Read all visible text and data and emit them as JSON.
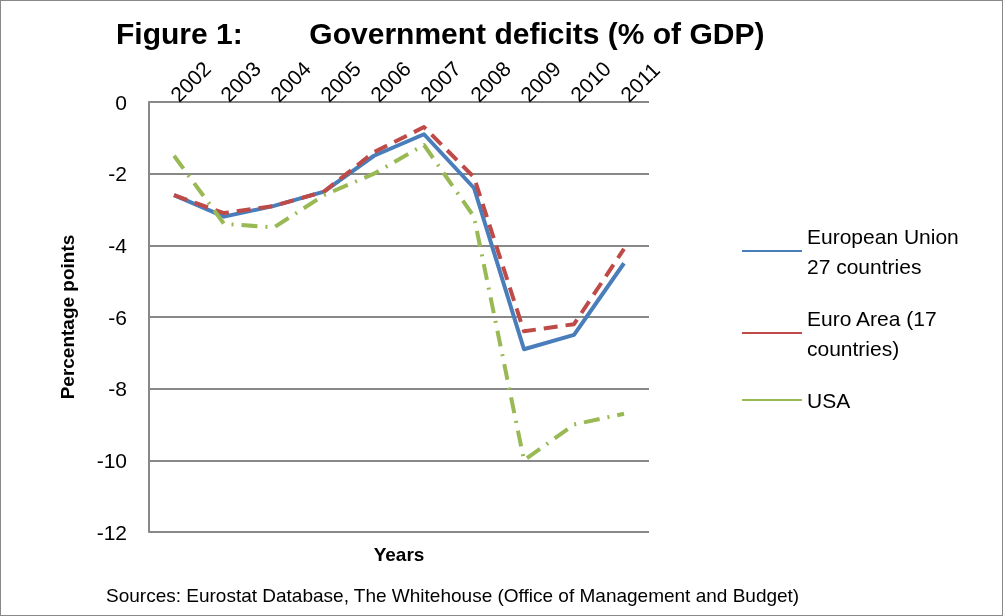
{
  "chart_data": {
    "type": "line",
    "title": "Figure 1:        Government deficits (% of GDP)",
    "xlabel": "Years",
    "ylabel": "Percentage points",
    "categories": [
      "2002",
      "2003",
      "2004",
      "2005",
      "2006",
      "2007",
      "2008",
      "2009",
      "2010",
      "2011"
    ],
    "series": [
      {
        "name": "European Union 27 countries",
        "color": "#4a7ebb",
        "line_style": "solid",
        "values": [
          -2.6,
          -3.2,
          -2.9,
          -2.5,
          -1.5,
          -0.9,
          -2.4,
          -6.9,
          -6.5,
          -4.5
        ]
      },
      {
        "name": "Euro Area (17 countries)",
        "color": "#be4b48",
        "line_style": "dashed",
        "values": [
          -2.6,
          -3.1,
          -2.9,
          -2.5,
          -1.4,
          -0.7,
          -2.1,
          -6.4,
          -6.2,
          -4.1
        ]
      },
      {
        "name": "USA",
        "color": "#98b954",
        "line_style": "dashdot",
        "values": [
          -1.5,
          -3.4,
          -3.5,
          -2.6,
          -2.0,
          -1.2,
          -3.2,
          -10.0,
          -9.0,
          -8.7
        ]
      }
    ],
    "ylim": [
      -12,
      0
    ],
    "yticks": [
      -12,
      -10,
      -8,
      -6,
      -4,
      -2,
      0
    ],
    "grid": "y",
    "legend": "right",
    "marker": "none",
    "annotations": [
      "Sources: Eurostat Database, The Whitehouse (Office of Management and Budget)"
    ]
  }
}
